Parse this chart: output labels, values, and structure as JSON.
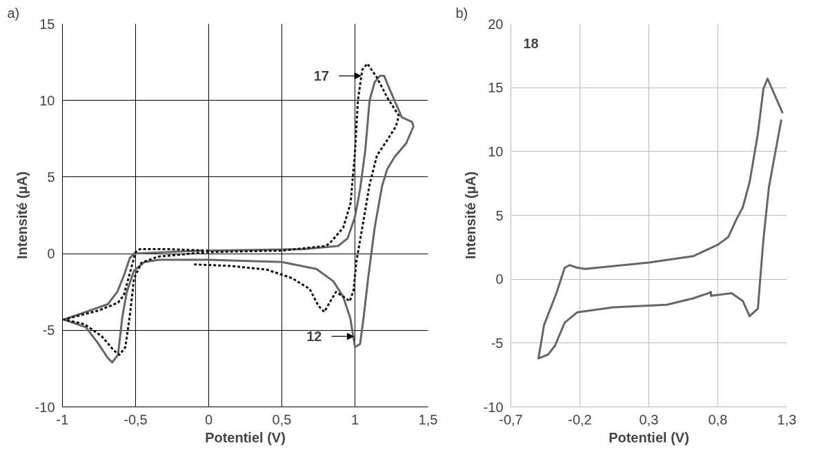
{
  "chart_data": [
    {
      "type": "line",
      "xlabel": "Potentiel (V)",
      "ylabel": "Intensité (µA)",
      "annotations": [
        "a)",
        {
          "text": "17",
          "x": 1.04,
          "y": 11.6
        },
        {
          "text": "12",
          "x": 0.99,
          "y": -5.4
        }
      ],
      "xlim": [
        -1,
        1.5
      ],
      "ylim": [
        -10,
        15
      ],
      "xticks": [
        -1,
        {
          "value": -0.5,
          "label": "-0,5"
        },
        0,
        {
          "value": 0.5,
          "label": "0,5"
        },
        1,
        {
          "value": 1.5,
          "label": "1,5"
        }
      ],
      "yticks": [
        -10,
        -5,
        0,
        5,
        10,
        15
      ],
      "grid": true,
      "marker": "none",
      "series": [
        {
          "color": "#666666",
          "line_style": "solid",
          "x": [
            -0.01,
            0.65,
            0.885,
            0.95,
            1.0,
            1.035,
            1.07,
            1.1,
            1.135,
            1.17,
            1.2,
            1.225,
            1.27,
            1.32,
            1.39,
            1.4,
            1.35,
            1.27,
            1.22,
            1.185,
            1.135,
            1.09,
            1.06,
            1.035,
            1.0,
            0.968,
            0.919,
            0.852,
            0.736,
            0.5,
            0.0,
            -0.34,
            -0.44,
            -0.51,
            -0.56,
            -0.59,
            -0.62,
            -0.66,
            -0.69,
            -0.76,
            -0.84,
            -0.99,
            -0.84,
            -0.69,
            -0.625,
            -0.575,
            -0.54,
            -0.51,
            -0.3,
            -0.05
          ],
          "values": [
            0.2,
            0.3,
            0.5,
            1.0,
            2.4,
            4.2,
            6.7,
            10.0,
            11.2,
            11.6,
            11.6,
            11.0,
            10.0,
            8.9,
            8.6,
            8.3,
            7.2,
            6.3,
            5.5,
            4.4,
            1.7,
            -1.6,
            -4.1,
            -5.9,
            -6.1,
            -4.2,
            -2.8,
            -1.8,
            -1.0,
            -0.55,
            -0.4,
            -0.4,
            -0.55,
            -1.1,
            -2.5,
            -4.1,
            -6.6,
            -7.1,
            -6.8,
            -5.8,
            -4.8,
            -4.3,
            -3.8,
            -3.3,
            -2.5,
            -1.3,
            -0.3,
            0.0,
            0.1,
            0.2
          ]
        },
        {
          "color": "#111111",
          "line_style": "dashed",
          "x": [
            0.0,
            -0.3,
            -0.47,
            -0.5,
            -0.54,
            -0.58,
            -0.62,
            -0.75,
            -0.99,
            -0.85,
            -0.73,
            -0.65,
            -0.61,
            -0.57,
            -0.54,
            -0.51,
            -0.46,
            -0.35,
            -0.01,
            0.5,
            0.8,
            0.83,
            0.92,
            0.97,
            1.0,
            1.02,
            1.05,
            1.085,
            1.15,
            1.22,
            1.3,
            1.28,
            1.22,
            1.15,
            1.1,
            1.05,
            1.01,
            0.99,
            0.965,
            0.92,
            0.87,
            0.82,
            0.79,
            0.75,
            0.69,
            0.57,
            0.4,
            0.15,
            -0.1
          ],
          "values": [
            0.2,
            0.3,
            0.3,
            0.1,
            -1.3,
            -2.7,
            -3.2,
            -3.7,
            -4.3,
            -4.6,
            -5.4,
            -6.3,
            -6.6,
            -6.1,
            -4.1,
            -1.6,
            -0.6,
            -0.2,
            0.1,
            0.2,
            0.5,
            0.7,
            1.7,
            3.3,
            6.6,
            10.0,
            12.0,
            12.4,
            11.5,
            10.2,
            9.0,
            8.3,
            7.4,
            6.4,
            4.5,
            1.7,
            -0.5,
            -2.4,
            -3.1,
            -2.8,
            -2.5,
            -3.3,
            -3.8,
            -3.4,
            -2.3,
            -1.6,
            -1.05,
            -0.8,
            -0.7
          ]
        }
      ]
    },
    {
      "type": "line",
      "xlabel": "Potentiel (V)",
      "ylabel": "Intensité (µA)",
      "annotations": [
        "b)",
        "18"
      ],
      "xlim": [
        -0.7,
        1.3
      ],
      "ylim": [
        -10,
        20
      ],
      "xticks": [
        {
          "value": -0.7,
          "label": "-0,7"
        },
        {
          "value": -0.2,
          "label": "-0,2"
        },
        {
          "value": 0.3,
          "label": "0,3"
        },
        {
          "value": 0.8,
          "label": "0,8"
        },
        {
          "value": 1.3,
          "label": "1,3"
        }
      ],
      "yticks": [
        -10,
        -5,
        0,
        5,
        10,
        15,
        20
      ],
      "grid": true,
      "marker": "none",
      "series": [
        {
          "color": "#666666",
          "line_style": "solid",
          "x": [
            1.27,
            1.16,
            1.13,
            1.09,
            1.03,
            0.98,
            0.935,
            0.875,
            0.8,
            0.62,
            0.3,
            -0.16,
            -0.22,
            -0.275,
            -0.31,
            -0.37,
            -0.46,
            -0.5,
            -0.43,
            -0.38,
            -0.31,
            -0.22,
            0.04,
            0.43,
            0.62,
            0.73,
            0.75,
            0.75,
            0.9,
            0.98,
            1.03,
            1.09,
            1.13,
            1.17,
            1.26
          ],
          "values": [
            13.0,
            15.7,
            14.9,
            11.4,
            7.6,
            5.6,
            4.7,
            3.3,
            2.7,
            1.8,
            1.3,
            0.8,
            0.9,
            1.1,
            0.9,
            -1.1,
            -3.6,
            -6.2,
            -5.9,
            -5.2,
            -3.4,
            -2.6,
            -2.2,
            -2.0,
            -1.5,
            -1.1,
            -1.0,
            -1.3,
            -1.1,
            -1.7,
            -2.9,
            -2.3,
            3.1,
            7.2,
            12.5
          ]
        }
      ]
    }
  ]
}
